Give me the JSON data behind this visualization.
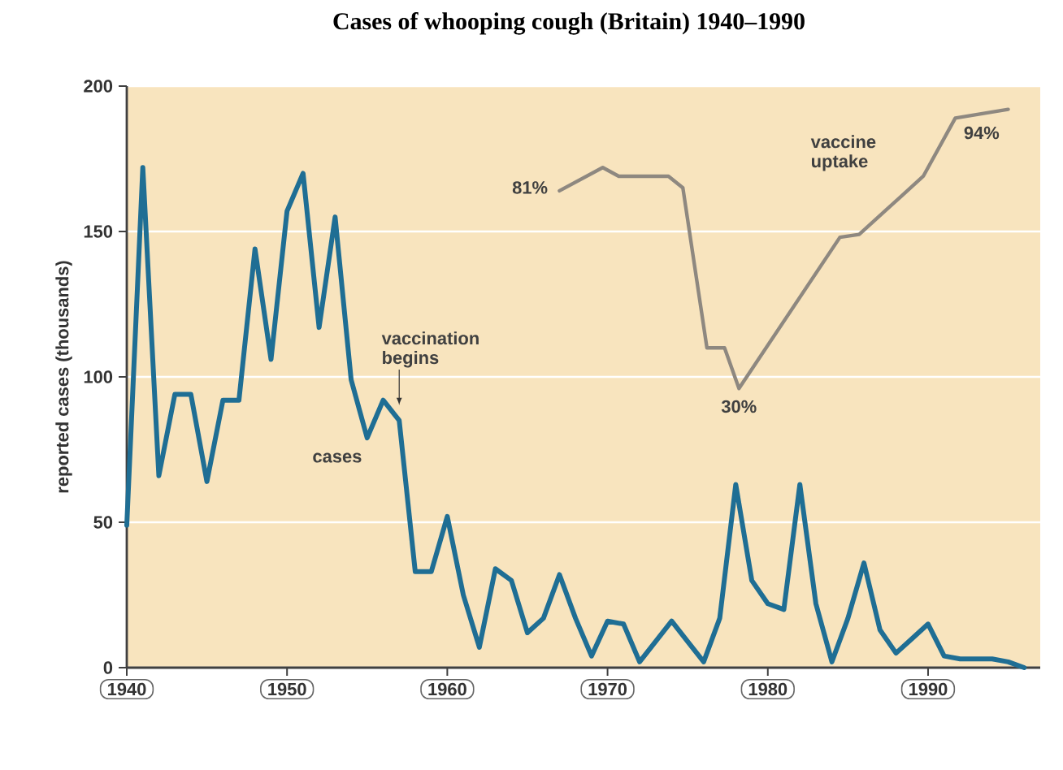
{
  "chart_data": {
    "type": "line",
    "title": "Cases of whooping cough (Britain) 1940–1990",
    "ylabel": "reported cases (thousands)",
    "xlim": [
      1940,
      1997
    ],
    "xticks": [
      1940,
      1950,
      1960,
      1970,
      1980,
      1990
    ],
    "ylim": [
      0,
      200
    ],
    "yticks": [
      0,
      50,
      100,
      150,
      200
    ],
    "grid": "y",
    "marker": "none",
    "line_style": "solid",
    "series": [
      {
        "color": "#1f6e94",
        "x": [
          1940,
          1941,
          1942,
          1943,
          1944,
          1945,
          1946,
          1947,
          1948,
          1949,
          1950,
          1951,
          1952,
          1953,
          1954,
          1955,
          1956,
          1957,
          1958,
          1959,
          1960,
          1961,
          1962,
          1963,
          1964,
          1965,
          1966,
          1967,
          1968,
          1969,
          1970,
          1971,
          1972,
          1973,
          1974,
          1975,
          1976,
          1977,
          1978,
          1979,
          1980,
          1981,
          1982,
          1983,
          1984,
          1985,
          1986,
          1987,
          1988,
          1989,
          1990,
          1991,
          1992,
          1993,
          1994,
          1995,
          1996
        ],
        "values": [
          49,
          172,
          66,
          94,
          94,
          64,
          92,
          92,
          144,
          106,
          157,
          170,
          117,
          155,
          99,
          79,
          92,
          85,
          33,
          33,
          52,
          25,
          7,
          34,
          30,
          12,
          17,
          32,
          17,
          4,
          16,
          15,
          2,
          9,
          16,
          9,
          2,
          17,
          63,
          30,
          22,
          20,
          63,
          22,
          2,
          17,
          36,
          13,
          5,
          10,
          15,
          4,
          3,
          3,
          3,
          2,
          0
        ]
      },
      {
        "color": "#8e8880",
        "x": [
          1967,
          1969.7,
          1970.7,
          1973.8,
          1974.7,
          1976.2,
          1977.3,
          1978.2,
          1984.5,
          1985.7,
          1988.3,
          1989.7,
          1991.7,
          1995
        ],
        "values": [
          164,
          172,
          169,
          169,
          165,
          110,
          110,
          96,
          148,
          149,
          162,
          169,
          189,
          192
        ]
      }
    ],
    "annotations": [
      {
        "text": "vaccination begins",
        "x": 1957,
        "y": 88
      },
      {
        "text": "cases",
        "x": 1955,
        "y": 79
      },
      {
        "text": "vaccine uptake",
        "x": 1989.7,
        "y": 169
      },
      {
        "text": "81%",
        "x": 1967,
        "y": 164
      },
      {
        "text": "30%",
        "x": 1978.2,
        "y": 96
      },
      {
        "text": "94%",
        "x": 1991.7,
        "y": 189
      }
    ]
  }
}
